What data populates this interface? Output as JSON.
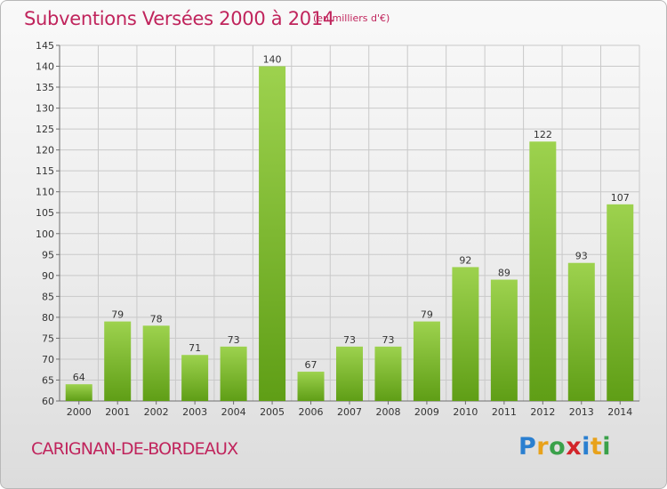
{
  "header": {
    "title": "Subventions Versées 2000 à 2014",
    "unit": "(en milliers d'€)"
  },
  "footer": {
    "commune": "CARIGNAN-DE-BORDEAUX",
    "logo_text": "Proxiti",
    "logo_letters": [
      "P",
      "r",
      "o",
      "x",
      "i",
      "t",
      "i"
    ],
    "logo_colors": [
      "#2a7fd0",
      "#e8a21b",
      "#3aa14a",
      "#d2242a",
      "#2a7fd0",
      "#e8a21b",
      "#3aa14a"
    ]
  },
  "colors": {
    "title": "#c0245c",
    "bar_top": "#9dd24e",
    "bar_bottom": "#5f9e16",
    "axis": "#6e6e6e",
    "grid": "#c9c9c9"
  },
  "chart_data": {
    "type": "bar",
    "title": "Subventions Versées 2000 à 2014",
    "subtitle": "(en milliers d'€)",
    "xlabel": "",
    "ylabel": "",
    "categories": [
      "2000",
      "2001",
      "2002",
      "2003",
      "2004",
      "2005",
      "2006",
      "2007",
      "2008",
      "2009",
      "2010",
      "2011",
      "2012",
      "2013",
      "2014"
    ],
    "values": [
      64,
      79,
      78,
      71,
      73,
      140,
      67,
      73,
      73,
      79,
      92,
      89,
      122,
      93,
      107
    ],
    "ylim": [
      60,
      145
    ],
    "yticks": [
      60,
      65,
      70,
      75,
      80,
      85,
      90,
      95,
      100,
      105,
      110,
      115,
      120,
      125,
      130,
      135,
      140,
      145
    ],
    "grid": true,
    "data_labels": true,
    "legend": "none"
  }
}
